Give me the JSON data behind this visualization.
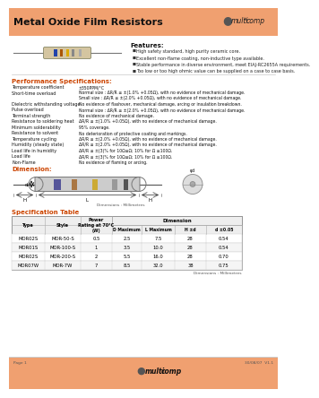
{
  "title": "Metal Oxide Film Resistors",
  "header_bg": "#F0A070",
  "footer_bg": "#F0A070",
  "page_bg": "#FFFFFF",
  "features_title": "Features:",
  "features": [
    "High safety standard, high purity ceramic core.",
    "Excellent non-flame coating, non-inductive type available.",
    "Stable performance in diverse environment, meet EIAJ-RC2655A requirements.",
    "Too low or too high ohmic value can be supplied on a case to case basis."
  ],
  "perf_title": "Performance Specifications:",
  "perf_specs": [
    [
      "Temperature coefficient",
      "±350PPM/°C"
    ],
    [
      "Short-time overload",
      "Normal size : ΔR/R ≤ ±(1.0% +0.05Ω), with no evidence of mechanical damage.\nSmall size : ΔR/R ≤ ±(2.0% +0.05Ω), with no evidence of mechanical damage."
    ],
    [
      "Dielectric withstanding voltage",
      "No evidence of flashover, mechanical damage, arcing or insulation breakdown."
    ],
    [
      "Pulse overload",
      "Normal size : ΔR/R ≤ ±(2.0% +0.05Ω), with no evidence of mechanical damage."
    ],
    [
      "Terminal strength",
      "No evidence of mechanical damage."
    ],
    [
      "Resistance to soldering heat",
      "ΔR/R ≤ ±(1.0% +0.05Ω), with no evidence of mechanical damage."
    ],
    [
      "Minimum solderability",
      "95% coverage."
    ],
    [
      "Resistance to solvent",
      "No deterioration of protective coating and markings."
    ],
    [
      "Temperature cycling",
      "ΔR/R ≤ ±(2.0% +0.05Ω), with no evidence of mechanical damage."
    ],
    [
      "Humidity (steady state)",
      "ΔR/R ≤ ±(2.0% +0.05Ω), with no evidence of mechanical damage."
    ],
    [
      "Load life in humidity",
      "ΔR/R ≤ ±(3)% for 10Ω≤Ω; 10% for Ω ≥100Ω."
    ],
    [
      "Load life",
      "ΔR/R ≤ ±(3)% for 10Ω≤Ω; 10% for Ω ≥100Ω."
    ],
    [
      "Non-Flame",
      "No evidence of flaming or arcing."
    ]
  ],
  "dim_title": "Dimension:",
  "spec_table_title": "Specification Table",
  "table_rows": [
    [
      "MOR02S",
      "MOR-50-S",
      "0.5",
      "2.5",
      "7.5",
      "28",
      "0.54"
    ],
    [
      "MOR01S",
      "MOR-100-S",
      "1",
      "3.5",
      "10.0",
      "28",
      "0.54"
    ],
    [
      "MOR02S",
      "MOR-200-S",
      "2",
      "5.5",
      "16.0",
      "28",
      "0.70"
    ],
    [
      "MOR07W",
      "MOR-7W",
      "7",
      "8.5",
      "32.0",
      "38",
      "0.75"
    ]
  ],
  "page_text": "Page 1",
  "date_text": "30/08/07  V1.1"
}
